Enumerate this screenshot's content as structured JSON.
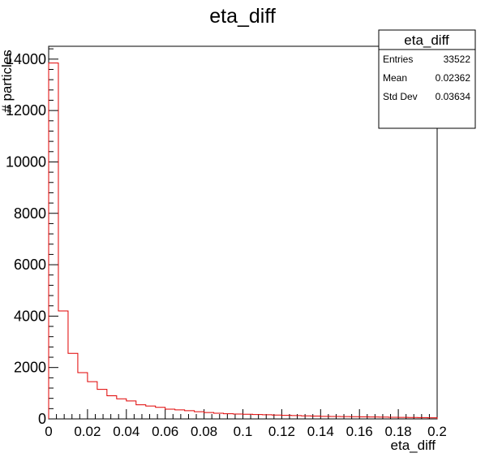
{
  "chart_data": {
    "type": "bar",
    "title": "eta_diff",
    "xlabel": "eta_diff",
    "ylabel": "# particles",
    "xlim": [
      0,
      0.2
    ],
    "ylim": [
      0,
      14500
    ],
    "x_ticks": [
      "0",
      "0.02",
      "0.04",
      "0.06",
      "0.08",
      "0.1",
      "0.12",
      "0.14",
      "0.16",
      "0.18",
      "0.2"
    ],
    "y_ticks": [
      "0",
      "2000",
      "4000",
      "6000",
      "8000",
      "10000",
      "12000",
      "14000"
    ],
    "bin_width": 0.005,
    "bin_low_edges": [
      0,
      0.005,
      0.01,
      0.015,
      0.02,
      0.025,
      0.03,
      0.035,
      0.04,
      0.045,
      0.05,
      0.055,
      0.06,
      0.065,
      0.07,
      0.075,
      0.08,
      0.085,
      0.09,
      0.095,
      0.1,
      0.105,
      0.11,
      0.115,
      0.12,
      0.125,
      0.13,
      0.135,
      0.14,
      0.145,
      0.15,
      0.155,
      0.16,
      0.165,
      0.17,
      0.175,
      0.18,
      0.185,
      0.19,
      0.195
    ],
    "values": [
      13850,
      4200,
      2550,
      1800,
      1450,
      1150,
      900,
      780,
      700,
      550,
      500,
      450,
      380,
      350,
      320,
      280,
      250,
      220,
      200,
      190,
      180,
      170,
      160,
      150,
      140,
      130,
      120,
      110,
      100,
      95,
      90,
      85,
      80,
      75,
      70,
      65,
      60,
      55,
      50,
      45
    ],
    "line_color": "#e00000",
    "grid": false,
    "stats_box": {
      "title": "eta_diff",
      "placement": "top-right",
      "rows": [
        {
          "label": "Entries",
          "value": "33522"
        },
        {
          "label": "Mean",
          "value": "0.02362"
        },
        {
          "label": "Std Dev",
          "value": "0.03634"
        }
      ]
    }
  }
}
